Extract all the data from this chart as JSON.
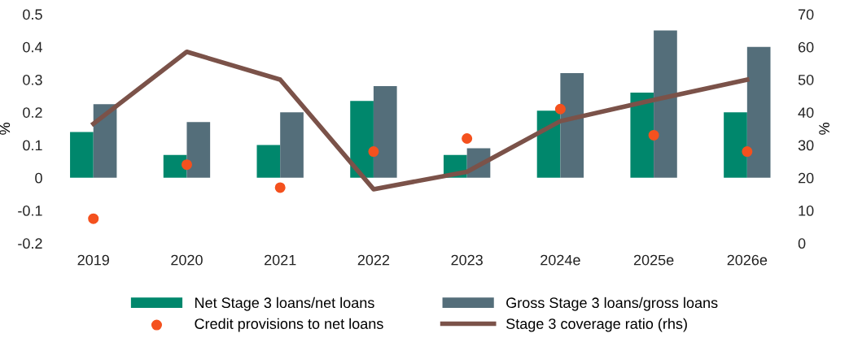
{
  "chart_data": {
    "type": "bar",
    "categories": [
      "2019",
      "2020",
      "2021",
      "2022",
      "2023",
      "2024e",
      "2025e",
      "2026e"
    ],
    "series": [
      {
        "name": "Net Stage 3 loans/net loans",
        "color": "#00876c",
        "values": [
          0.14,
          0.07,
          0.1,
          0.235,
          0.07,
          0.205,
          0.26,
          0.2
        ]
      },
      {
        "name": "Gross Stage 3 loans/gross loans",
        "color": "#546e7a",
        "values": [
          0.225,
          0.17,
          0.2,
          0.28,
          0.09,
          0.32,
          0.45,
          0.4
        ]
      },
      {
        "name": "Credit provisions to net loans",
        "type": "scatter",
        "color": "#f4511e",
        "marker": "circle",
        "values": [
          -0.125,
          0.04,
          -0.03,
          0.08,
          0.12,
          0.21,
          0.13,
          0.08
        ]
      },
      {
        "name": "Stage 3 coverage ratio (rhs)",
        "type": "line",
        "axis": "y2",
        "color": "#7b5249",
        "values": [
          36.5,
          58.5,
          50,
          16.5,
          21.8,
          37.3,
          43.8,
          50
        ]
      }
    ],
    "ylabel": "%",
    "y2label": "%",
    "ylim": [
      -0.2,
      0.5
    ],
    "yticks": [
      -0.2,
      -0.1,
      0,
      0.1,
      0.2,
      0.3,
      0.4,
      0.5
    ],
    "y2lim": [
      0,
      70
    ],
    "y2ticks": [
      0,
      10,
      20,
      30,
      40,
      50,
      60,
      70
    ],
    "grid": false,
    "legend": "bottom"
  }
}
